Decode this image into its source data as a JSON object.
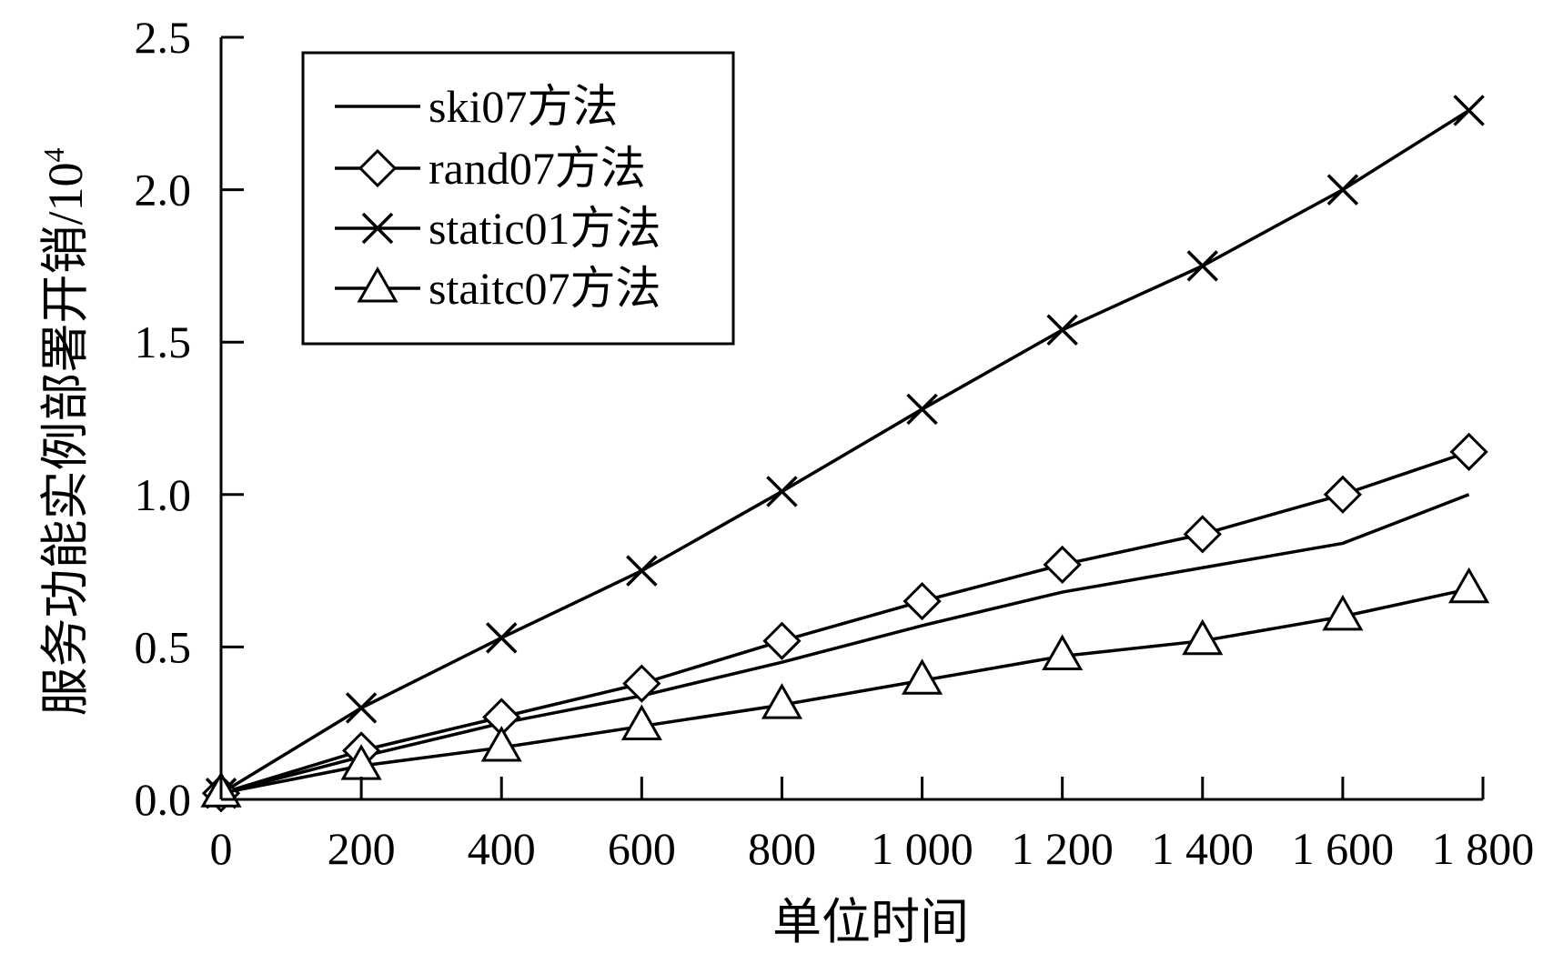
{
  "chart_data": {
    "type": "line",
    "xlabel": "单位时间",
    "ylabel": "服务功能实例部署开销/10",
    "ylabel_superscript": "4",
    "xlim": [
      0,
      1800
    ],
    "ylim": [
      0,
      2.5
    ],
    "x_ticks": [
      0,
      200,
      400,
      600,
      800,
      1000,
      1200,
      1400,
      1600,
      1800
    ],
    "x_tick_labels": [
      "0",
      "200",
      "400",
      "600",
      "800",
      "1 000",
      "1 200",
      "1 400",
      "1 600",
      "1 800"
    ],
    "y_ticks": [
      0,
      0.5,
      1.0,
      1.5,
      2.0,
      2.5
    ],
    "y_tick_labels": [
      "0.0",
      "0.5",
      "1.0",
      "1.5",
      "2.0",
      "2.5"
    ],
    "grid": false,
    "legend_position": "top-left",
    "line_color": "#000000",
    "series": [
      {
        "name": "ski07方法",
        "marker": "none",
        "x": [
          0,
          200,
          400,
          600,
          800,
          1000,
          1200,
          1400,
          1600,
          1780
        ],
        "values": [
          0.02,
          0.14,
          0.25,
          0.34,
          0.45,
          0.57,
          0.68,
          0.76,
          0.84,
          1.0
        ]
      },
      {
        "name": "rand07方法",
        "marker": "diamond",
        "x": [
          0,
          200,
          400,
          600,
          800,
          1000,
          1200,
          1400,
          1600,
          1780
        ],
        "values": [
          0.02,
          0.16,
          0.27,
          0.38,
          0.52,
          0.65,
          0.77,
          0.87,
          1.0,
          1.14
        ]
      },
      {
        "name": "static01方法",
        "marker": "x",
        "x": [
          0,
          200,
          400,
          600,
          800,
          1000,
          1200,
          1400,
          1600,
          1780
        ],
        "values": [
          0.02,
          0.3,
          0.53,
          0.75,
          1.01,
          1.28,
          1.54,
          1.75,
          2.0,
          2.26
        ]
      },
      {
        "name": "staitc07方法",
        "marker": "triangle",
        "x": [
          0,
          200,
          400,
          600,
          800,
          1000,
          1200,
          1400,
          1600,
          1780
        ],
        "values": [
          0.02,
          0.11,
          0.17,
          0.24,
          0.31,
          0.39,
          0.47,
          0.52,
          0.6,
          0.69
        ]
      }
    ]
  }
}
